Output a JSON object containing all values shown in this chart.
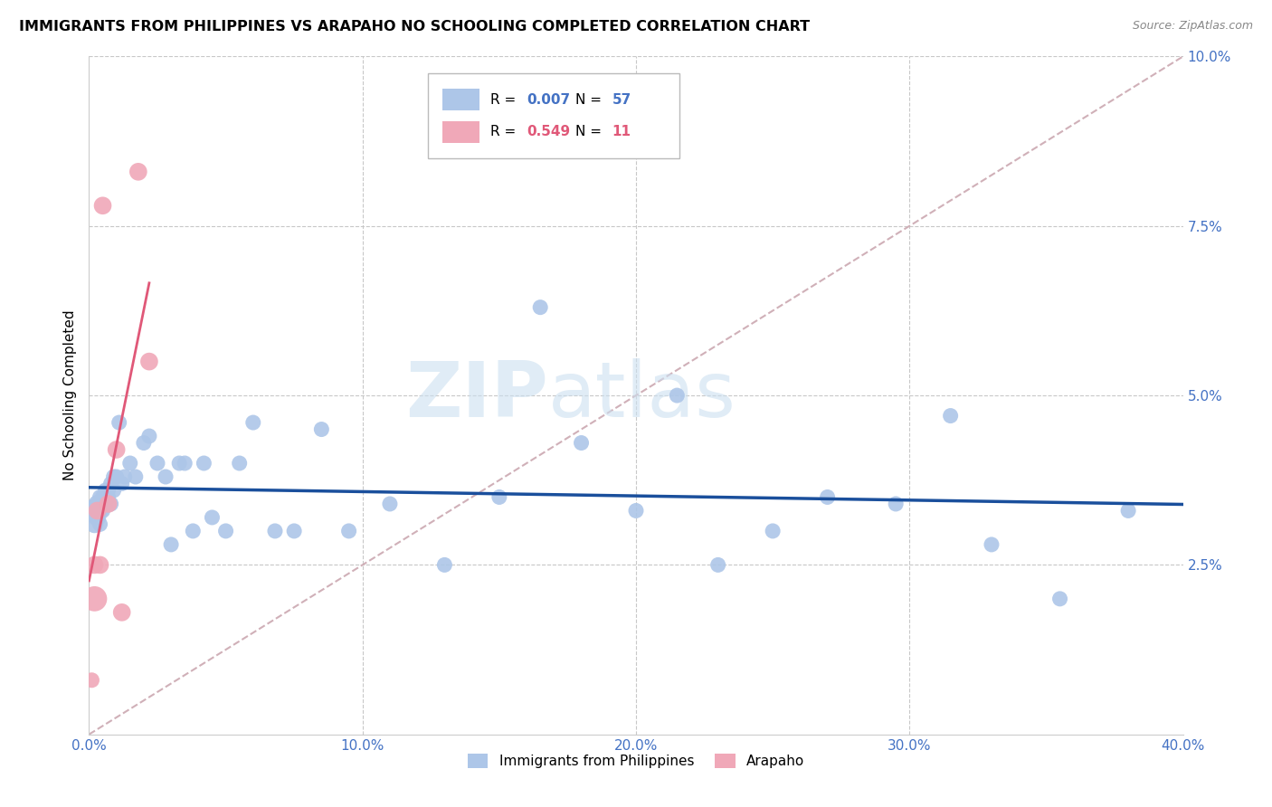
{
  "title": "IMMIGRANTS FROM PHILIPPINES VS ARAPAHO NO SCHOOLING COMPLETED CORRELATION CHART",
  "source": "Source: ZipAtlas.com",
  "ylabel": "No Schooling Completed",
  "xlim": [
    0.0,
    0.4
  ],
  "ylim": [
    0.0,
    0.1
  ],
  "xticks": [
    0.0,
    0.1,
    0.2,
    0.3,
    0.4
  ],
  "xtick_labels": [
    "0.0%",
    "10.0%",
    "20.0%",
    "30.0%",
    "40.0%"
  ],
  "yticks": [
    0.0,
    0.025,
    0.05,
    0.075,
    0.1
  ],
  "ytick_labels": [
    "",
    "2.5%",
    "5.0%",
    "7.5%",
    "10.0%"
  ],
  "axis_color": "#4472c4",
  "grid_color": "#c8c8c8",
  "watermark_zip": "ZIP",
  "watermark_atlas": "atlas",
  "legend_label_1": "Immigrants from Philippines",
  "legend_label_2": "Arapaho",
  "R1": "0.007",
  "N1": "57",
  "R2": "0.549",
  "N2": "11",
  "blue_color": "#adc6e8",
  "pink_color": "#f0a8b8",
  "line1_color": "#1a4f9c",
  "line2_color": "#e05878",
  "ref_line_color": "#d0b0b8",
  "philippines_x": [
    0.001,
    0.002,
    0.002,
    0.003,
    0.003,
    0.004,
    0.004,
    0.004,
    0.005,
    0.005,
    0.005,
    0.006,
    0.006,
    0.007,
    0.007,
    0.008,
    0.008,
    0.009,
    0.009,
    0.01,
    0.011,
    0.012,
    0.013,
    0.015,
    0.017,
    0.02,
    0.022,
    0.025,
    0.028,
    0.03,
    0.033,
    0.035,
    0.038,
    0.042,
    0.045,
    0.05,
    0.055,
    0.06,
    0.068,
    0.075,
    0.085,
    0.095,
    0.11,
    0.13,
    0.15,
    0.165,
    0.18,
    0.2,
    0.215,
    0.23,
    0.25,
    0.27,
    0.295,
    0.315,
    0.33,
    0.355,
    0.38
  ],
  "philippines_y": [
    0.033,
    0.033,
    0.031,
    0.034,
    0.032,
    0.033,
    0.031,
    0.035,
    0.033,
    0.034,
    0.035,
    0.036,
    0.034,
    0.036,
    0.035,
    0.037,
    0.034,
    0.038,
    0.036,
    0.038,
    0.046,
    0.037,
    0.038,
    0.04,
    0.038,
    0.043,
    0.044,
    0.04,
    0.038,
    0.028,
    0.04,
    0.04,
    0.03,
    0.04,
    0.032,
    0.03,
    0.04,
    0.046,
    0.03,
    0.03,
    0.045,
    0.03,
    0.034,
    0.025,
    0.035,
    0.063,
    0.043,
    0.033,
    0.05,
    0.025,
    0.03,
    0.035,
    0.034,
    0.047,
    0.028,
    0.02,
    0.033
  ],
  "philippines_sizes": [
    120,
    350,
    200,
    200,
    200,
    180,
    150,
    150,
    150,
    150,
    150,
    150,
    150,
    150,
    150,
    150,
    150,
    150,
    150,
    150,
    150,
    150,
    150,
    150,
    150,
    150,
    150,
    150,
    150,
    150,
    150,
    150,
    150,
    150,
    150,
    150,
    150,
    150,
    150,
    150,
    150,
    150,
    150,
    150,
    150,
    150,
    150,
    150,
    150,
    150,
    150,
    150,
    150,
    150,
    150,
    150,
    150
  ],
  "arapaho_x": [
    0.001,
    0.002,
    0.002,
    0.003,
    0.004,
    0.005,
    0.007,
    0.01,
    0.012,
    0.018,
    0.022
  ],
  "arapaho_y": [
    0.008,
    0.02,
    0.025,
    0.033,
    0.025,
    0.078,
    0.034,
    0.042,
    0.018,
    0.083,
    0.055
  ],
  "arapaho_sizes": [
    150,
    400,
    200,
    200,
    200,
    200,
    200,
    200,
    200,
    200,
    200
  ]
}
